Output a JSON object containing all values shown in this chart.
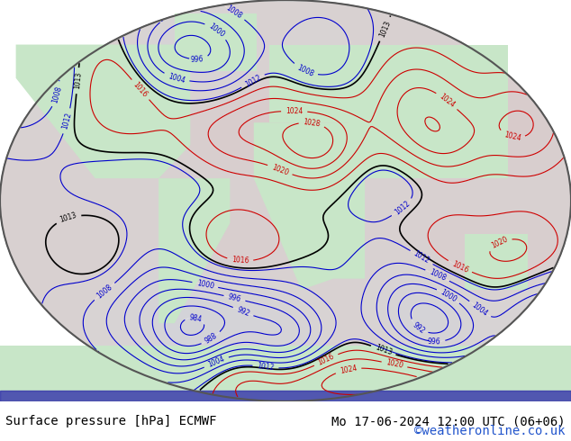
{
  "title_left": "Surface pressure [hPa] ECMWF",
  "title_right": "Mo 17-06-2024 12:00 UTC (06+06)",
  "copyright": "©weatheronline.co.uk",
  "bg_color": "#ffffff",
  "map_bg": "#e8e8e8",
  "land_color": "#c8e6c8",
  "ocean_color": "#d8d8d8",
  "contour_base_color": "#000000",
  "contour_low_color": "#0000cc",
  "contour_high_color": "#cc0000",
  "contour_1013_color": "#000000",
  "bottom_bar_color": "#3333aa",
  "bottom_bar_red": "#cc2222",
  "label_fontsize": 10,
  "title_fontsize": 10,
  "copyright_color": "#2255cc"
}
